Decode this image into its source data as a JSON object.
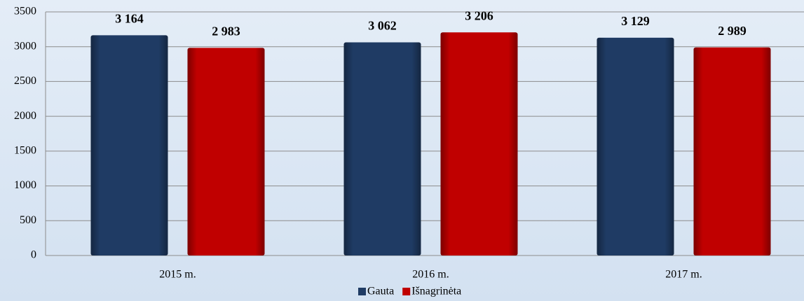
{
  "chart_data": {
    "type": "bar",
    "categories": [
      "2015 m.",
      "2016 m.",
      "2017 m."
    ],
    "series": [
      {
        "name": "Gauta",
        "color": "#1f3b64",
        "values": [
          3164,
          3062,
          3129
        ],
        "value_labels": [
          "3 164",
          "3 062",
          "3 129"
        ]
      },
      {
        "name": "Išnagrinėta",
        "color": "#c00000",
        "values": [
          2983,
          3206,
          2989
        ],
        "value_labels": [
          "2 983",
          "3 206",
          "2 989"
        ]
      }
    ],
    "ylim": [
      0,
      3500
    ],
    "yticks": [
      0,
      500,
      1000,
      1500,
      2000,
      2500,
      3000,
      3500
    ],
    "grid": true,
    "legend": "bottom"
  }
}
